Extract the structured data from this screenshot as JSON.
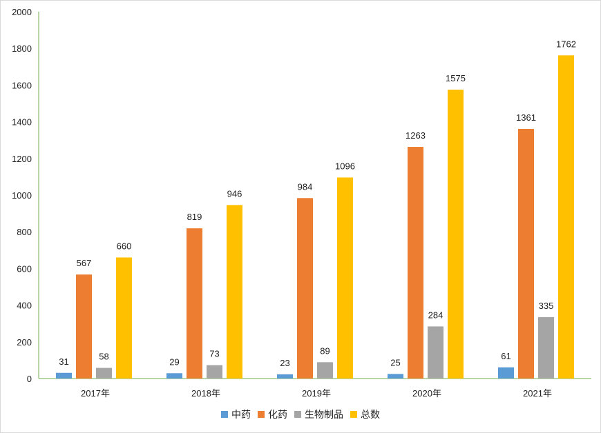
{
  "chart_data": {
    "type": "bar",
    "categories": [
      "2017年",
      "2018年",
      "2019年",
      "2020年",
      "2021年"
    ],
    "series": [
      {
        "name": "中药",
        "values": [
          31,
          29,
          23,
          25,
          61
        ],
        "color": "#5B9BD5"
      },
      {
        "name": "化药",
        "values": [
          567,
          819,
          984,
          1263,
          1361
        ],
        "color": "#ED7D31"
      },
      {
        "name": "生物制品",
        "values": [
          58,
          73,
          89,
          284,
          335
        ],
        "color": "#A5A5A5"
      },
      {
        "name": "总数",
        "values": [
          660,
          946,
          1096,
          1575,
          1762
        ],
        "color": "#FFC000"
      }
    ],
    "ylim": [
      0,
      2000
    ],
    "yticks": [
      0,
      200,
      400,
      600,
      800,
      1000,
      1200,
      1400,
      1600,
      1800,
      2000
    ],
    "grid": false,
    "legend_position": "bottom",
    "axis_color": "#70AD47"
  }
}
